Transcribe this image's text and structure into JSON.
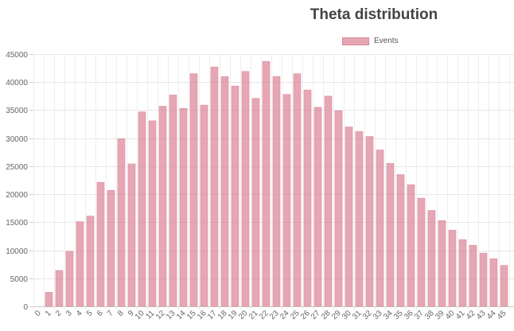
{
  "chart_data": {
    "type": "bar",
    "title": "Theta distribution",
    "xlabel": "",
    "ylabel": "",
    "legend_position": "top-right",
    "grid": true,
    "ylim": [
      0,
      45000
    ],
    "y_ticks": [
      0,
      5000,
      10000,
      15000,
      20000,
      25000,
      30000,
      35000,
      40000,
      45000
    ],
    "categories": [
      "0",
      "1",
      "2",
      "3",
      "4",
      "5",
      "6",
      "7",
      "8",
      "9",
      "10",
      "11",
      "12",
      "13",
      "14",
      "15",
      "16",
      "17",
      "18",
      "19",
      "20",
      "21",
      "22",
      "23",
      "24",
      "25",
      "26",
      "27",
      "28",
      "29",
      "30",
      "31",
      "32",
      "33",
      "34",
      "35",
      "36",
      "37",
      "38",
      "39",
      "40",
      "41",
      "42",
      "43",
      "44",
      "45"
    ],
    "series": [
      {
        "name": "Events",
        "color": "#e8a1ad",
        "values": [
          0,
          2500,
          6400,
          9800,
          15100,
          16100,
          22100,
          20700,
          29900,
          25400,
          34700,
          33100,
          35700,
          37700,
          35300,
          41500,
          35900,
          42700,
          41000,
          39300,
          41900,
          37100,
          43700,
          41000,
          37800,
          41500,
          38600,
          35500,
          37500,
          34900,
          32000,
          31200,
          30300,
          27900,
          25500,
          23500,
          21700,
          19300,
          17100,
          15300,
          13600,
          11900,
          10900,
          9500,
          8500,
          7300
        ]
      }
    ]
  }
}
